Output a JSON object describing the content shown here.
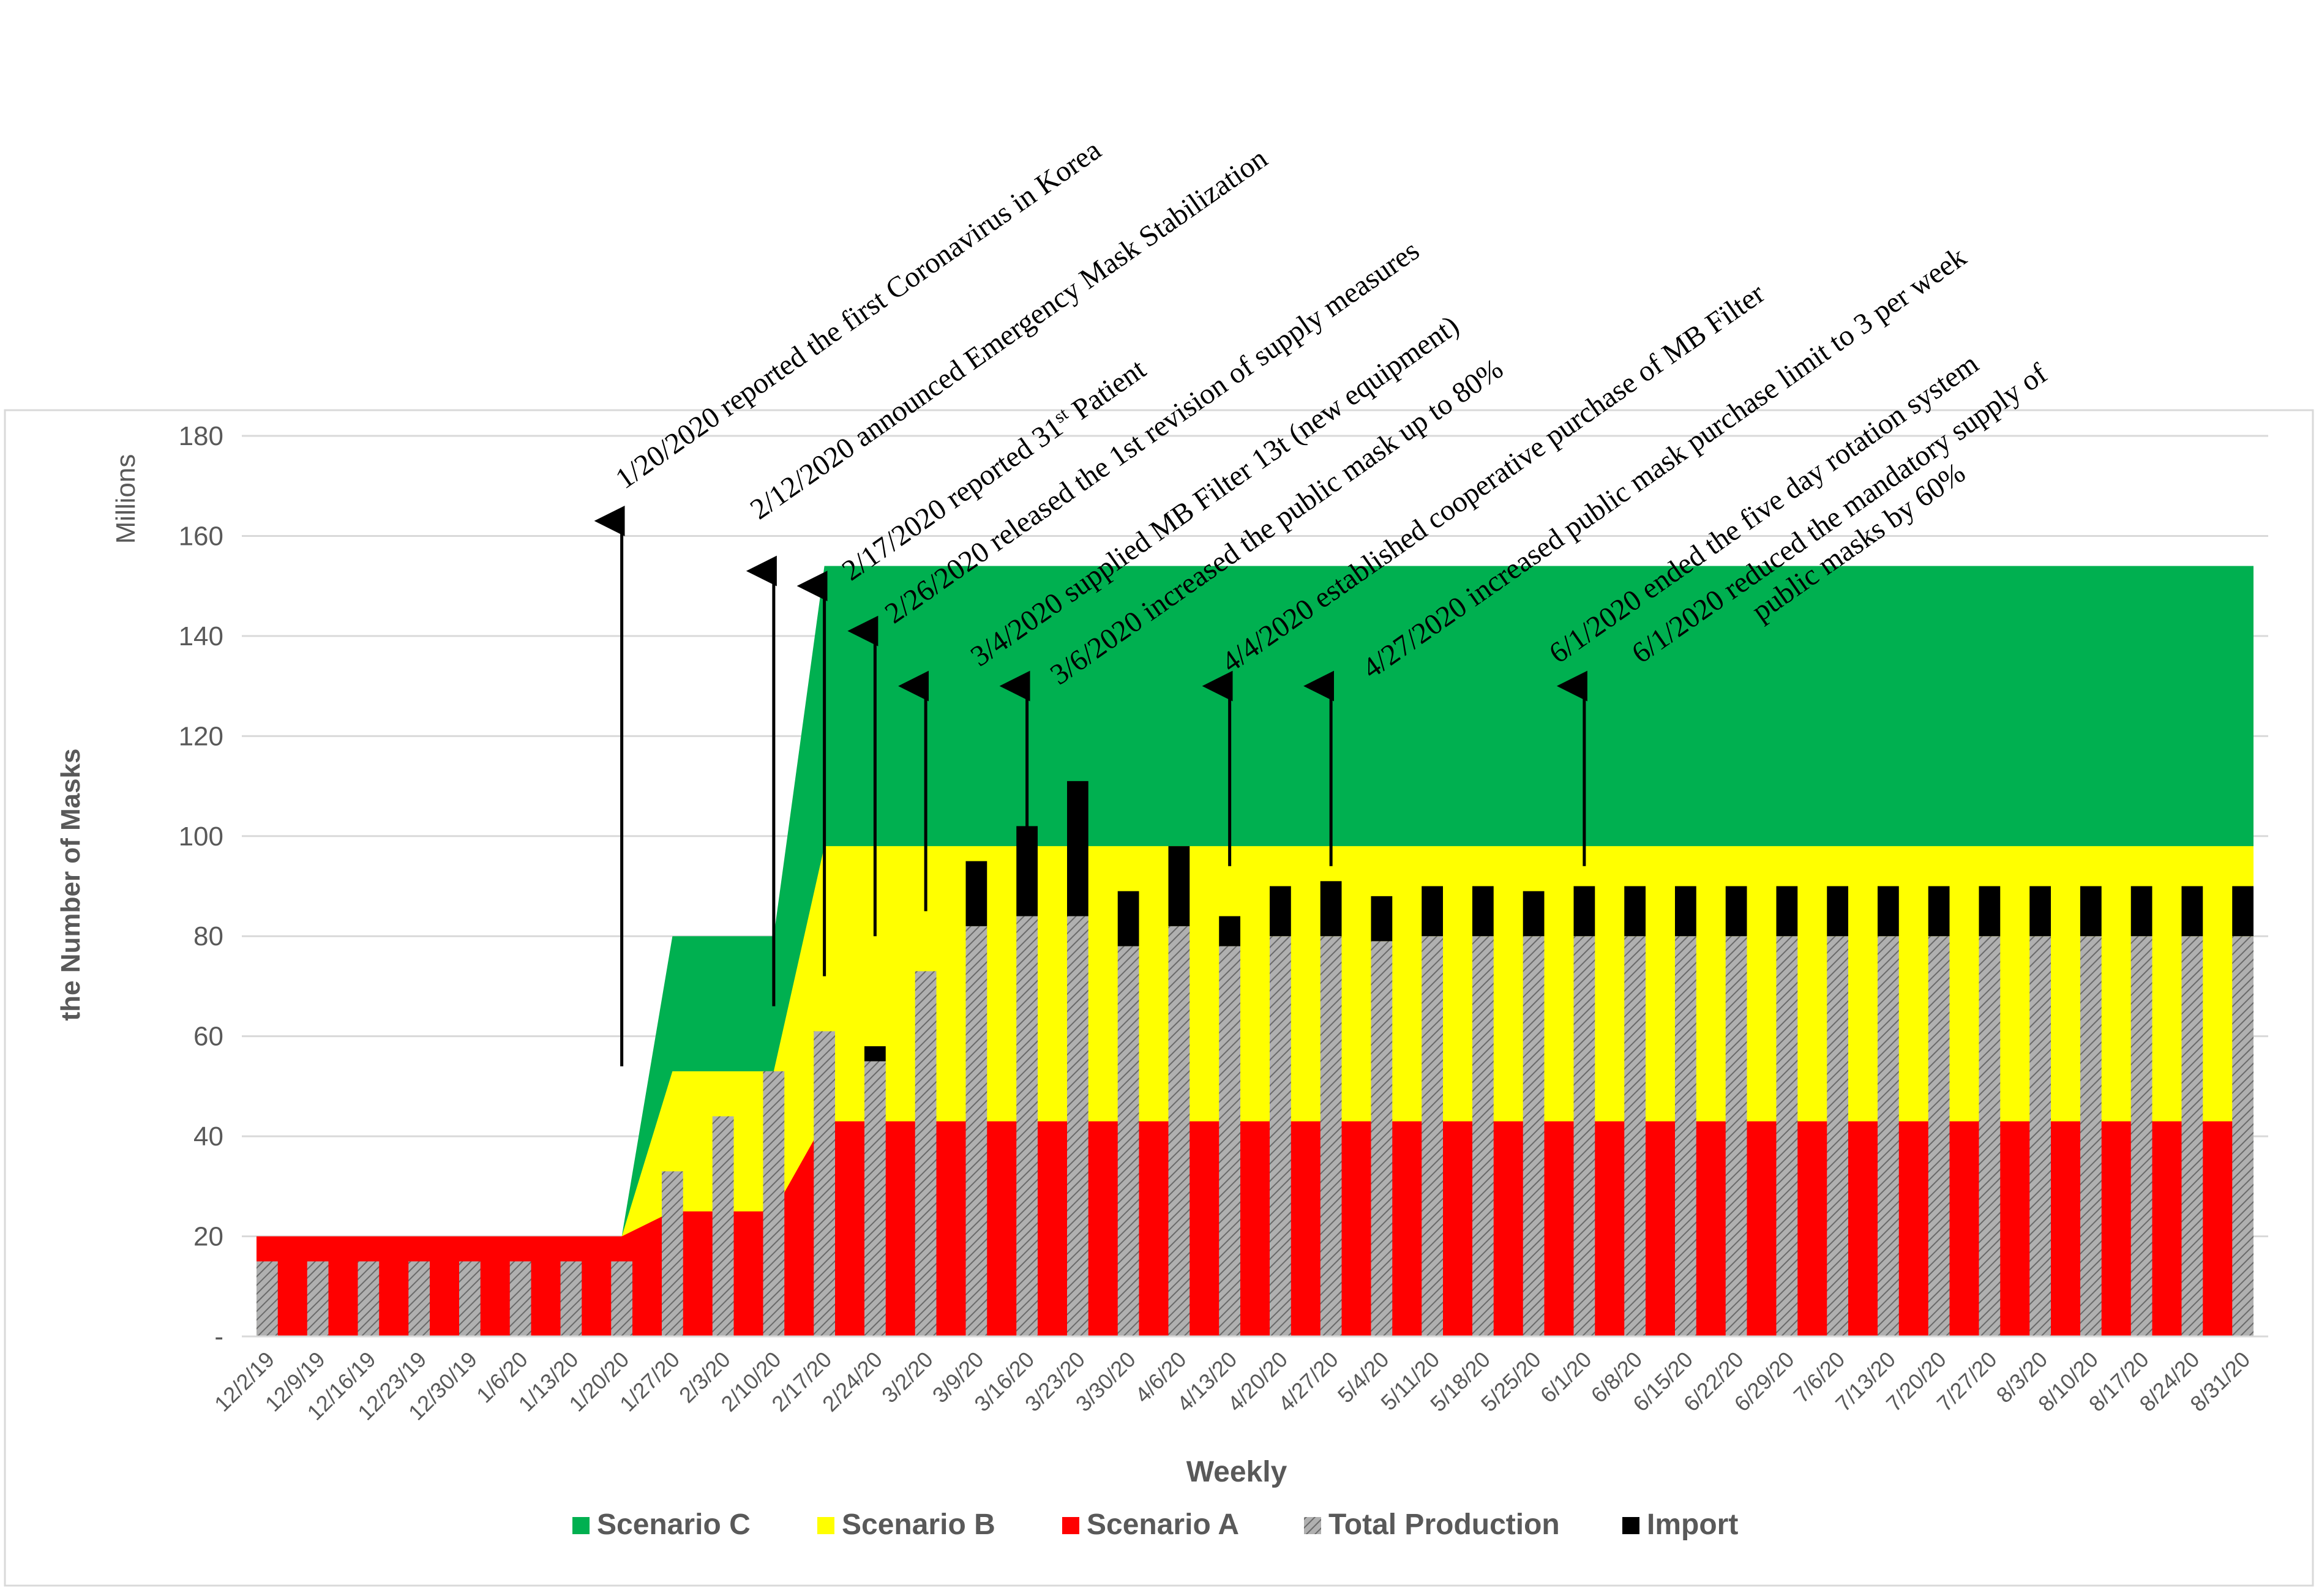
{
  "chart_data": {
    "type": "bar",
    "title": "",
    "xlabel": "Weekly",
    "ylabel": "the Number of Masks",
    "yunit": "Millions",
    "ylim": [
      0,
      180
    ],
    "yticks": [
      0,
      20,
      40,
      60,
      80,
      100,
      120,
      140,
      160,
      180
    ],
    "ytick_labels": [
      "-",
      "20",
      "40",
      "60",
      "80",
      "100",
      "120",
      "140",
      "160",
      "180"
    ],
    "grid": true,
    "categories": [
      "12/2/19",
      "12/9/19",
      "12/16/19",
      "12/23/19",
      "12/30/19",
      "1/6/20",
      "1/13/20",
      "1/20/20",
      "1/27/20",
      "2/3/20",
      "2/10/20",
      "2/17/20",
      "2/24/20",
      "3/2/20",
      "3/9/20",
      "3/16/20",
      "3/23/20",
      "3/30/20",
      "4/6/20",
      "4/13/20",
      "4/20/20",
      "4/27/20",
      "5/4/20",
      "5/11/20",
      "5/18/20",
      "5/25/20",
      "6/1/20",
      "6/8/20",
      "6/15/20",
      "6/22/20",
      "6/29/20",
      "7/6/20",
      "7/13/20",
      "7/20/20",
      "7/27/20",
      "8/3/20",
      "8/10/20",
      "8/17/20",
      "8/24/20",
      "8/31/20"
    ],
    "series": [
      {
        "name": "Scenario C",
        "kind": "area",
        "color": "#00b050",
        "values": [
          20,
          20,
          20,
          20,
          20,
          20,
          20,
          20,
          80,
          80,
          80,
          154,
          154,
          154,
          154,
          154,
          154,
          154,
          154,
          154,
          154,
          154,
          154,
          154,
          154,
          154,
          154,
          154,
          154,
          154,
          154,
          154,
          154,
          154,
          154,
          154,
          154,
          154,
          154,
          154
        ]
      },
      {
        "name": "Scenario B",
        "kind": "area",
        "color": "#ffff00",
        "values": [
          20,
          20,
          20,
          20,
          20,
          20,
          20,
          20,
          53,
          53,
          53,
          98,
          98,
          98,
          98,
          98,
          98,
          98,
          98,
          98,
          98,
          98,
          98,
          98,
          98,
          98,
          98,
          98,
          98,
          98,
          98,
          98,
          98,
          98,
          98,
          98,
          98,
          98,
          98,
          98
        ]
      },
      {
        "name": "Scenario A",
        "kind": "area",
        "color": "#ff0000",
        "values": [
          20,
          20,
          20,
          20,
          20,
          20,
          20,
          20,
          25,
          25,
          25,
          43,
          43,
          43,
          43,
          43,
          43,
          43,
          43,
          43,
          43,
          43,
          43,
          43,
          43,
          43,
          43,
          43,
          43,
          43,
          43,
          43,
          43,
          43,
          43,
          43,
          43,
          43,
          43,
          43
        ]
      },
      {
        "name": "Total Production",
        "kind": "bar",
        "color": "#a6a6a6",
        "values": [
          15,
          15,
          15,
          15,
          15,
          15,
          15,
          15,
          33,
          44,
          53,
          61,
          55,
          73,
          82,
          84,
          84,
          78,
          82,
          78,
          80,
          80,
          79,
          80,
          80,
          80,
          80,
          80,
          80,
          80,
          80,
          80,
          80,
          80,
          80,
          80,
          80,
          80,
          80,
          80
        ]
      },
      {
        "name": "Import",
        "kind": "bar",
        "color": "#000000",
        "values": [
          0,
          0,
          0,
          0,
          0,
          0,
          0,
          0,
          0,
          0,
          0,
          0,
          3,
          0,
          13,
          18,
          27,
          11,
          16,
          6,
          10,
          11,
          9,
          10,
          10,
          9,
          10,
          10,
          10,
          10,
          10,
          10,
          10,
          10,
          10,
          10,
          10,
          10,
          10,
          10
        ]
      }
    ],
    "annotations": [
      {
        "text": "1/20/2020 reported the first Coronavirus in Korea",
        "category_index": 7,
        "y_from": 54,
        "y_to": 163
      },
      {
        "text": "2/12/2020 announced Emergency Mask Stabilization",
        "category_index": 10,
        "y_from": 66,
        "y_to": 153
      },
      {
        "text": "2/17/2020 reported 31",
        "sup": "st",
        "after": " Patient",
        "category_index": 11,
        "y_from": 72,
        "y_to": 150
      },
      {
        "text": "2/26/2020 released the 1st revision of supply measures",
        "category_index": 12,
        "y_from": 80,
        "y_to": 141
      },
      {
        "text": "3/4/2020 supplied MB Filter 13t (new equipment)",
        "category_index": 13,
        "y_from": 85,
        "y_to": 130
      },
      {
        "text": "3/6/2020 increased the public mask up to 80%",
        "category_index": 15,
        "y_from": 84,
        "y_to": 130
      },
      {
        "text": "4/4/2020 established cooperative purchase of MB Filter",
        "category_index": 19,
        "y_from": 94,
        "y_to": 130
      },
      {
        "text": "4/27/2020 increased public mask purchase limit to 3 per week",
        "category_index": 21,
        "y_from": 94,
        "y_to": 130
      },
      {
        "text": "6/1/2020 ended the five day rotation system",
        "category_index": 26,
        "y_from": 94,
        "y_to": 130
      },
      {
        "text": "6/1/2020 reduced the mandatory supply of",
        "line2": "public masks by 60%",
        "category_index": 26
      }
    ],
    "legend": {
      "placement": "bottom",
      "entries": [
        "Scenario C",
        "Scenario B",
        "Scenario A",
        "Total Production",
        "Import"
      ]
    }
  }
}
